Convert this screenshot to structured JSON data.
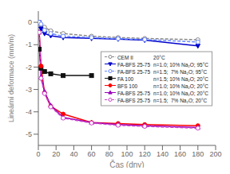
{
  "chart_data": {
    "type": "line",
    "xlabel": "Čas (dny)",
    "ylabel": "Lineární deformace (mm/m)",
    "xlim": [
      0,
      200
    ],
    "ylim": [
      -5.5,
      0.5
    ],
    "xticks": [
      0,
      20,
      40,
      60,
      80,
      100,
      120,
      140,
      160,
      180,
      200
    ],
    "yticks": [
      0,
      -1,
      -2,
      -3,
      -4,
      -5
    ],
    "grid": false,
    "legend": "right",
    "series": [
      {
        "name": "CEM II",
        "description": "20°C",
        "color": "#888888",
        "marker": "circle_open",
        "line_style": "dashed",
        "x": [
          1,
          3,
          7,
          14,
          28,
          60,
          90,
          120,
          180
        ],
        "values": [
          0.0,
          -0.12,
          -0.22,
          -0.38,
          -0.5,
          -0.62,
          -0.68,
          -0.72,
          -0.78
        ]
      },
      {
        "name": "FA-BFS 25-75",
        "description": "n=1.0; 10% Na₂O; 95°C",
        "color": "#0000cc",
        "marker": "triangle_down",
        "line_style": "solid",
        "x": [
          1,
          3,
          7,
          14,
          28,
          60,
          90,
          120,
          180
        ],
        "values": [
          0.0,
          -0.28,
          -0.5,
          -0.6,
          -0.68,
          -0.72,
          -0.75,
          -0.8,
          -1.05
        ]
      },
      {
        "name": "FA-BFS 25-75",
        "description": "n=1.5;  7% Na₂O; 95°C",
        "color": "#6688ff",
        "marker": "circle_open",
        "line_style": "dashed",
        "x": [
          1,
          3,
          7,
          14,
          28,
          60,
          90,
          120,
          180
        ],
        "values": [
          0.0,
          -0.08,
          -0.35,
          -0.5,
          -0.62,
          -0.68,
          -0.73,
          -0.77,
          -0.88
        ]
      },
      {
        "name": "FA 100",
        "description": "n=1.5; 10% Na₂O; 20°C",
        "color": "#111111",
        "marker": "square",
        "line_style": "solid",
        "x": [
          1,
          3,
          7,
          14,
          28,
          60
        ],
        "values": [
          -1.2,
          -2.05,
          -2.2,
          -2.3,
          -2.38,
          -2.38
        ]
      },
      {
        "name": "BFS 100",
        "description": "n=1.0; 10% Na₂O; 20°C",
        "color": "#ff0000",
        "marker": "circle",
        "line_style": "solid",
        "x": [
          1,
          3,
          7,
          14,
          28,
          60,
          90,
          120,
          180
        ],
        "values": [
          -0.45,
          -1.95,
          -3.15,
          -3.75,
          -4.1,
          -4.48,
          -4.52,
          -4.57,
          -4.62
        ]
      },
      {
        "name": "FA-BFS 25-75",
        "description": "n=1.0; 10% Na₂O; 20°C",
        "color": "#9900bb",
        "marker": "triangle_up",
        "line_style": "solid",
        "x": [
          1,
          3,
          7,
          14,
          28,
          60,
          90,
          120,
          180
        ],
        "values": [
          -0.45,
          -2.45,
          -3.1,
          -3.72,
          -4.25,
          -4.48,
          -4.57,
          -4.62,
          -4.7
        ]
      },
      {
        "name": "FA-BFS 25-75",
        "description": "n=1.5;  7% Na₂O; 20°C",
        "color": "#cc44cc",
        "marker": "circle_open",
        "line_style": "dashed",
        "x": [
          1,
          3,
          7,
          14,
          28,
          60,
          90,
          120,
          180
        ],
        "values": [
          -0.45,
          -2.5,
          -3.18,
          -3.78,
          -4.28,
          -4.5,
          -4.6,
          -4.65,
          -4.73
        ]
      }
    ]
  }
}
